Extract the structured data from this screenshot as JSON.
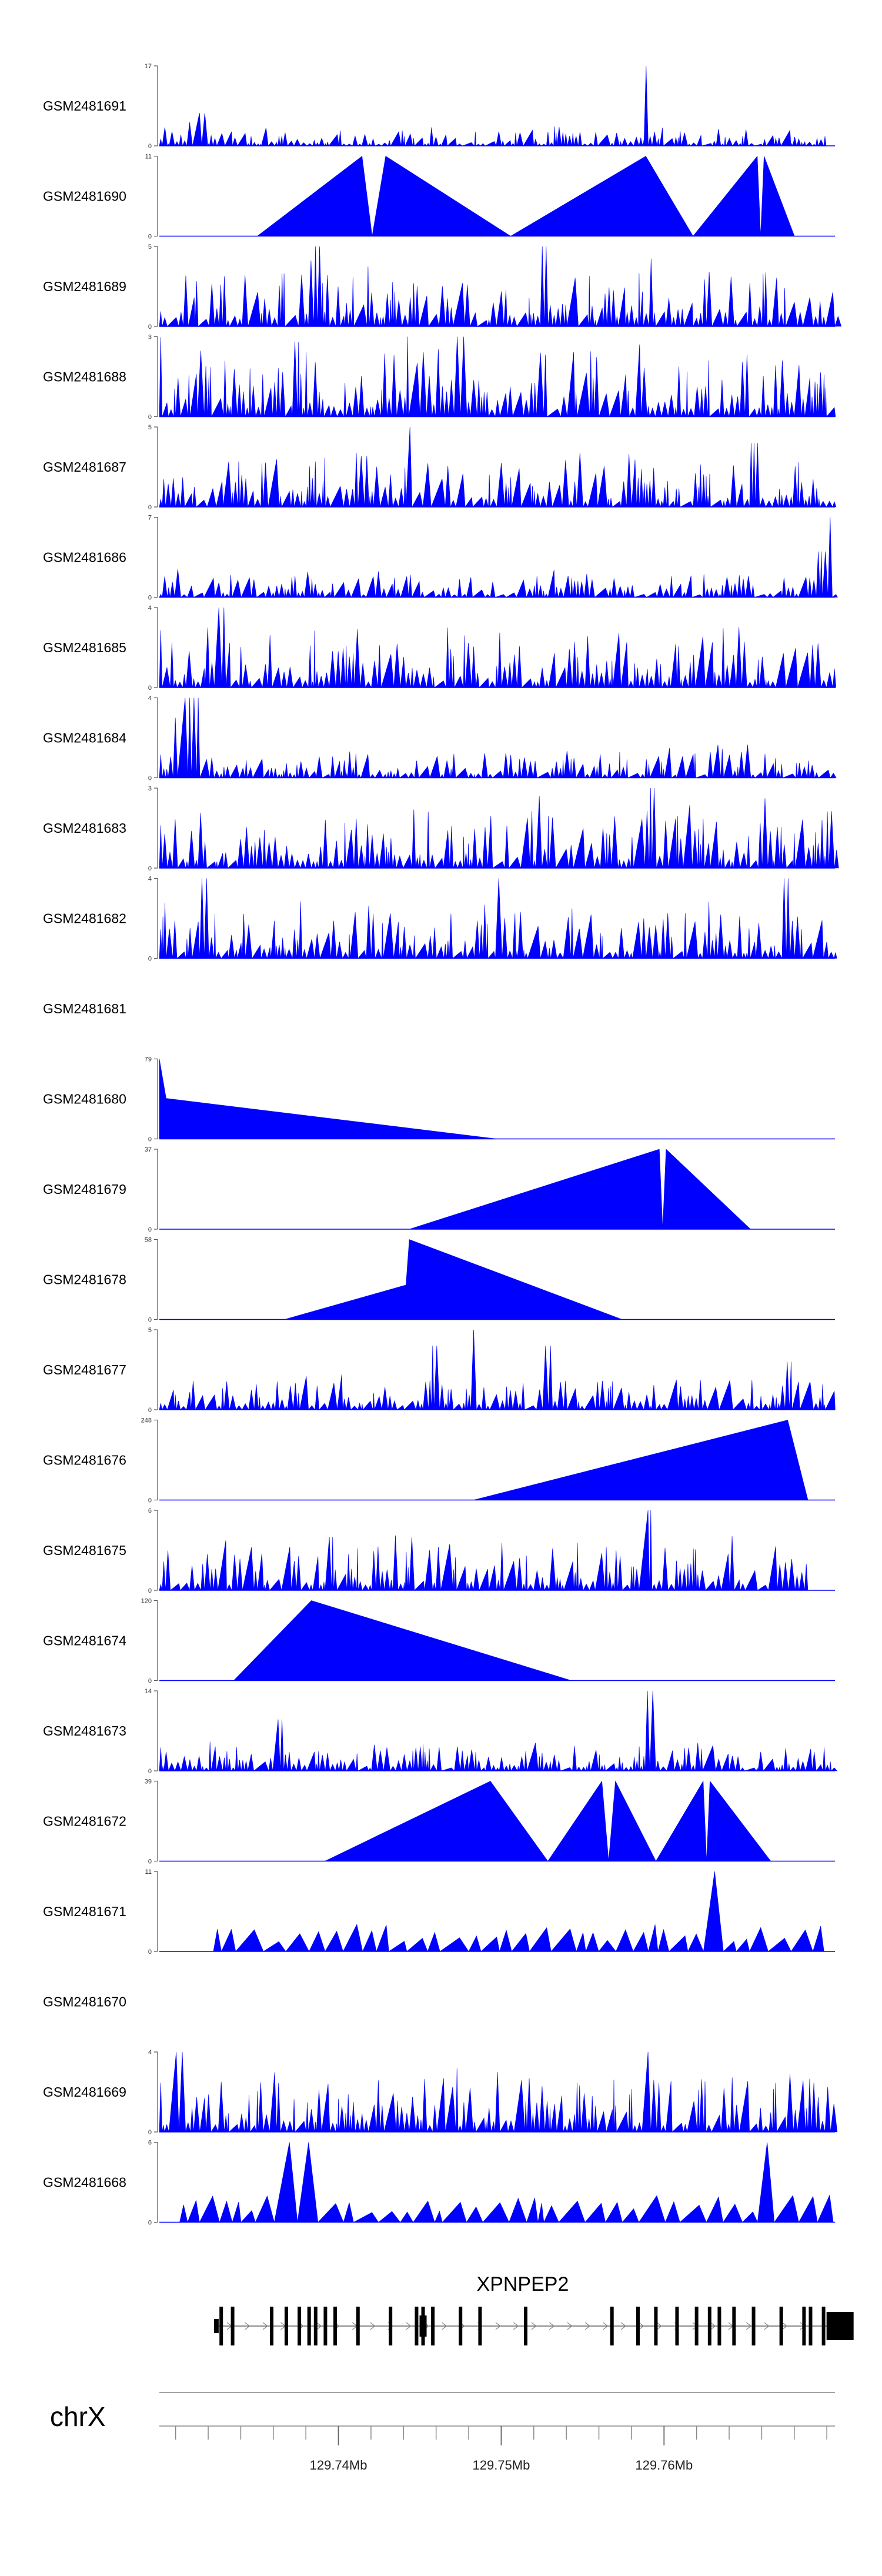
{
  "chart_data": {
    "type": "area",
    "title": "",
    "region": {
      "chromosome": "chrX",
      "start_mb": 129.729,
      "end_mb": 129.7705
    },
    "axis": {
      "ticks_mb": [
        129.74,
        129.75,
        129.76
      ],
      "tick_labels": [
        "129.74Mb",
        "129.75Mb",
        "129.76Mb"
      ]
    },
    "gene": {
      "name": "XPNPEP2",
      "start_mb": 129.7325,
      "end_mb": 129.7705,
      "strand": "+",
      "exons_mb": [
        129.7328,
        129.7335,
        129.7359,
        129.7368,
        129.7376,
        129.7382,
        129.7386,
        129.7392,
        129.7398,
        129.7412,
        129.7432,
        129.7448,
        129.7452,
        129.7458,
        129.7475,
        129.7487,
        129.7515,
        129.7568,
        129.7584,
        129.7595,
        129.7608,
        129.762,
        129.7628,
        129.7634,
        129.7643,
        129.7655,
        129.7672,
        129.7686,
        129.769,
        129.7698
      ]
    },
    "series": [
      {
        "name": "GSM2481691",
        "ymax": 17,
        "seed": 91,
        "profile": "sparse",
        "xrange": [
          0.0,
          0.99
        ],
        "peaks": [
          [
            0.72,
            17
          ],
          [
            0.06,
            7
          ],
          [
            0.045,
            5
          ]
        ],
        "base": 2.5
      },
      {
        "name": "GSM2481690",
        "ymax": 11,
        "profile": "triangles",
        "knots": [
          [
            0.145,
            0
          ],
          [
            0.3,
            11
          ],
          [
            0.315,
            0
          ],
          [
            0.335,
            11
          ],
          [
            0.52,
            0
          ],
          [
            0.72,
            11
          ],
          [
            0.79,
            0
          ],
          [
            0.885,
            11
          ],
          [
            0.89,
            0
          ],
          [
            0.895,
            11
          ],
          [
            0.94,
            0
          ]
        ]
      },
      {
        "name": "GSM2481689",
        "ymax": 5,
        "seed": 89,
        "profile": "dense",
        "xrange": [
          0.0,
          1.0
        ],
        "peaks": [
          [
            0.235,
            5
          ],
          [
            0.57,
            5
          ]
        ],
        "base": 2.5
      },
      {
        "name": "GSM2481688",
        "ymax": 3,
        "seed": 88,
        "profile": "dense",
        "xrange": [
          0.0,
          1.0
        ],
        "peaks": [
          [
            0.37,
            3
          ],
          [
            0.45,
            3
          ]
        ],
        "base": 1.8
      },
      {
        "name": "GSM2481687",
        "ymax": 5,
        "seed": 87,
        "profile": "dense",
        "xrange": [
          0.0,
          1.0
        ],
        "peaks": [
          [
            0.37,
            5
          ],
          [
            0.88,
            4
          ]
        ],
        "base": 2.2
      },
      {
        "name": "GSM2481686",
        "ymax": 7,
        "seed": 86,
        "profile": "dense",
        "xrange": [
          0.0,
          1.0
        ],
        "peaks": [
          [
            0.995,
            7
          ],
          [
            0.98,
            4
          ]
        ],
        "base": 1.5
      },
      {
        "name": "GSM2481685",
        "ymax": 4,
        "seed": 85,
        "profile": "dense",
        "xrange": [
          0.0,
          1.0
        ],
        "peaks": [
          [
            0.09,
            4
          ],
          [
            0.07,
            3
          ]
        ],
        "base": 1.8
      },
      {
        "name": "GSM2481684",
        "ymax": 4,
        "seed": 84,
        "profile": "dense",
        "xrange": [
          0.0,
          1.0
        ],
        "peaks": [
          [
            0.04,
            4
          ],
          [
            0.055,
            4
          ],
          [
            0.025,
            3
          ]
        ],
        "base": 1.0
      },
      {
        "name": "GSM2481683",
        "ymax": 3,
        "seed": 83,
        "profile": "dense",
        "xrange": [
          0.0,
          1.0
        ],
        "peaks": [
          [
            0.76,
            3
          ],
          [
            0.73,
            3
          ]
        ],
        "base": 1.6
      },
      {
        "name": "GSM2481682",
        "ymax": 4,
        "seed": 82,
        "profile": "dense",
        "xrange": [
          0.0,
          1.0
        ],
        "peaks": [
          [
            0.065,
            4
          ],
          [
            0.5,
            4
          ],
          [
            0.93,
            4
          ]
        ],
        "base": 1.7
      },
      {
        "name": "GSM2481681",
        "ymax": null,
        "profile": "empty"
      },
      {
        "name": "GSM2481680",
        "ymax": 79,
        "profile": "triangles",
        "knots": [
          [
            0.0,
            0
          ],
          [
            0.0,
            79
          ],
          [
            0.01,
            40
          ],
          [
            0.5,
            0
          ]
        ]
      },
      {
        "name": "GSM2481679",
        "ymax": 37,
        "profile": "triangles",
        "knots": [
          [
            0.37,
            0
          ],
          [
            0.74,
            37
          ],
          [
            0.745,
            0
          ],
          [
            0.75,
            37
          ],
          [
            0.875,
            0
          ]
        ]
      },
      {
        "name": "GSM2481678",
        "ymax": 58,
        "profile": "triangles",
        "knots": [
          [
            0.185,
            0
          ],
          [
            0.365,
            25
          ],
          [
            0.37,
            58
          ],
          [
            0.685,
            0
          ]
        ]
      },
      {
        "name": "GSM2481677",
        "ymax": 5,
        "seed": 77,
        "profile": "dense",
        "xrange": [
          0.0,
          1.0
        ],
        "peaks": [
          [
            0.465,
            5
          ],
          [
            0.405,
            4
          ],
          [
            0.575,
            4
          ],
          [
            0.935,
            3
          ]
        ],
        "base": 1.4
      },
      {
        "name": "GSM2481676",
        "ymax": 248,
        "profile": "triangles",
        "knots": [
          [
            0.465,
            0
          ],
          [
            0.93,
            248
          ],
          [
            0.96,
            0
          ]
        ]
      },
      {
        "name": "GSM2481675",
        "ymax": 6,
        "seed": 75,
        "profile": "dense",
        "xrange": [
          0.0,
          0.96
        ],
        "peaks": [
          [
            0.725,
            6
          ],
          [
            0.375,
            4
          ],
          [
            0.255,
            4
          ]
        ],
        "base": 2.6
      },
      {
        "name": "GSM2481674",
        "ymax": 120,
        "profile": "triangles",
        "knots": [
          [
            0.11,
            0
          ],
          [
            0.225,
            120
          ],
          [
            0.61,
            0
          ]
        ]
      },
      {
        "name": "GSM2481673",
        "ymax": 14,
        "seed": 73,
        "profile": "sparse",
        "xrange": [
          0.0,
          1.0
        ],
        "peaks": [
          [
            0.725,
            14
          ],
          [
            0.18,
            9
          ]
        ],
        "base": 3.5
      },
      {
        "name": "GSM2481672",
        "ymax": 39,
        "profile": "triangles",
        "knots": [
          [
            0.245,
            0
          ],
          [
            0.49,
            39
          ],
          [
            0.575,
            0
          ],
          [
            0.655,
            39
          ],
          [
            0.665,
            0
          ],
          [
            0.675,
            39
          ],
          [
            0.735,
            0
          ],
          [
            0.805,
            39
          ],
          [
            0.81,
            0
          ],
          [
            0.815,
            39
          ],
          [
            0.905,
            0
          ]
        ]
      },
      {
        "name": "GSM2481671",
        "ymax": 11,
        "seed": 71,
        "profile": "triangles-random",
        "xrange": [
          0.08,
          0.99
        ],
        "peaks": [
          [
            0.825,
            11
          ]
        ],
        "base": 4
      },
      {
        "name": "GSM2481670",
        "ymax": null,
        "profile": "empty"
      },
      {
        "name": "GSM2481669",
        "ymax": 4,
        "seed": 69,
        "profile": "dense",
        "xrange": [
          0.0,
          1.0
        ],
        "peaks": [
          [
            0.72,
            4
          ],
          [
            0.03,
            4
          ],
          [
            0.5,
            3
          ]
        ],
        "base": 2.0
      },
      {
        "name": "GSM2481668",
        "ymax": 6,
        "seed": 68,
        "profile": "triangles-random",
        "xrange": [
          0.03,
          0.99
        ],
        "peaks": [
          [
            0.2,
            6
          ],
          [
            0.915,
            6
          ]
        ],
        "base": 4
      }
    ]
  },
  "chromosome_label": "chrX"
}
